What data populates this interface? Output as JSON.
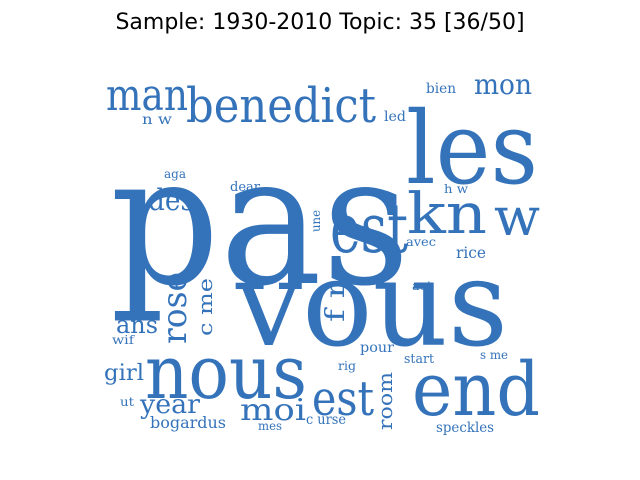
{
  "figure": {
    "title": "Sample: 1930-2010 Topic: 35 [36/50]",
    "word_color": "#3473ba",
    "background_color": "#ffffff"
  },
  "words": [
    {
      "text": "pas",
      "orientation": "horizontal"
    },
    {
      "text": "vous",
      "orientation": "horizontal"
    },
    {
      "text": "les",
      "orientation": "horizontal"
    },
    {
      "text": "nous",
      "orientation": "horizontal"
    },
    {
      "text": "end",
      "orientation": "horizontal"
    },
    {
      "text": "benedict",
      "orientation": "horizontal"
    },
    {
      "text": "man",
      "orientation": "horizontal"
    },
    {
      "text": "kn",
      "orientation": "horizontal"
    },
    {
      "text": "w",
      "orientation": "horizontal"
    },
    {
      "text": "est",
      "orientation": "horizontal"
    },
    {
      "text": "est",
      "orientation": "horizontal"
    },
    {
      "text": "mon",
      "orientation": "horizontal"
    },
    {
      "text": "rose",
      "orientation": "vertical"
    },
    {
      "text": "des",
      "orientation": "horizontal"
    },
    {
      "text": "moi",
      "orientation": "horizontal"
    },
    {
      "text": "year",
      "orientation": "horizontal"
    },
    {
      "text": "ans",
      "orientation": "horizontal"
    },
    {
      "text": "girl",
      "orientation": "horizontal"
    },
    {
      "text": "room",
      "orientation": "vertical"
    },
    {
      "text": "c me",
      "orientation": "vertical"
    },
    {
      "text": "f r",
      "orientation": "vertical"
    },
    {
      "text": "rice",
      "orientation": "horizontal"
    },
    {
      "text": "bien",
      "orientation": "horizontal"
    },
    {
      "text": "led",
      "orientation": "horizontal"
    },
    {
      "text": "n w",
      "orientation": "horizontal"
    },
    {
      "text": "aga",
      "orientation": "horizontal"
    },
    {
      "text": "dear",
      "orientation": "horizontal"
    },
    {
      "text": "h w",
      "orientation": "horizontal"
    },
    {
      "text": "une",
      "orientation": "vertical"
    },
    {
      "text": "avec",
      "orientation": "horizontal"
    },
    {
      "text": "act",
      "orientation": "horizontal"
    },
    {
      "text": "wif",
      "orientation": "horizontal"
    },
    {
      "text": "pour",
      "orientation": "horizontal"
    },
    {
      "text": "rig",
      "orientation": "horizontal"
    },
    {
      "text": "start",
      "orientation": "horizontal"
    },
    {
      "text": "s me",
      "orientation": "horizontal"
    },
    {
      "text": "ut",
      "orientation": "horizontal"
    },
    {
      "text": "bogardus",
      "orientation": "horizontal"
    },
    {
      "text": "mes",
      "orientation": "horizontal"
    },
    {
      "text": "c urse",
      "orientation": "horizontal"
    },
    {
      "text": "speckles",
      "orientation": "horizontal"
    }
  ]
}
